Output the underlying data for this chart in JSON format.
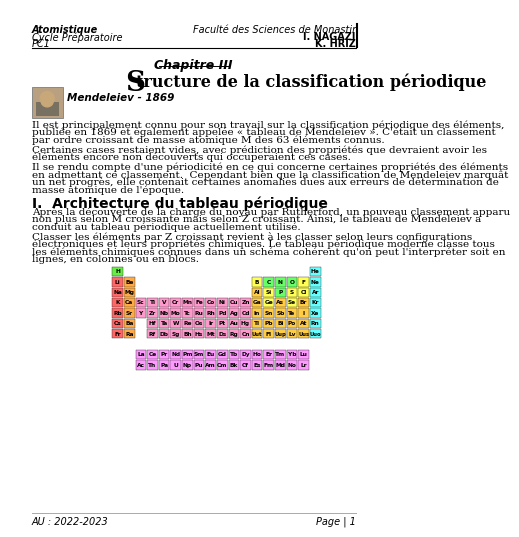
{
  "header_left": [
    "Atomistique",
    "Cycle Préparatoire",
    "PC1"
  ],
  "header_right": [
    "Faculté des Sciences de Monastir",
    "I. NAGAZI",
    "K. HRIZ"
  ],
  "chapter": "Chapitre III",
  "mendeleiev_label": "Mendeleiev - 1869",
  "para1_lines": [
    "Il est principalement connu pour son travail sur la classification périodique des éléments,",
    "publiée en 1869 et également appelée « tableau de Mendeleiev ». C'était un classement",
    "par ordre croissant de masse atomique M des 63 éléments connus."
  ],
  "para2_lines": [
    "Certaines cases restaient vides, avec prédiction des propriétés que devraient avoir les",
    "éléments encore non découverts qui occuperaient ces cases."
  ],
  "para3_lines": [
    "Il se rendu compte d'une périodicité en ce qui concerne certaines propriétés des éléments",
    "en admettant ce classement.  Cependant bien que la classification de Mendeleiev marquât",
    "un net progrès, elle contenait certaines anomalies dues aux erreurs de détermination de",
    "masse atomique de l'époque."
  ],
  "section1": "I.  Architecture du tableau périodique",
  "para4_lines": [
    "Après la découverte de la charge du noyau par Rutherford, un nouveau classement apparu",
    "non plus selon M croissante mais selon Z croissant. Ainsi, le tableau de Mendeleiev a",
    "conduit au tableau périodique actuellement utilisé."
  ],
  "para5_lines": [
    "Classer les éléments par Z croissant revient à les classer selon leurs configurations",
    "électroniques et leurs propriétés chimiques. Le tableau périodique moderne classe tous",
    "les éléments chimiques connues dans un schéma cohérent qu'on peut l'interpréter soit en",
    "lignes, en colonnes ou en blocs."
  ],
  "footer_left": "AU : 2022-2023",
  "footer_right": "Page | 1",
  "bg_color": "#ffffff",
  "text_color": "#000000",
  "title_S": "S",
  "title_rest": "tructure de la classification périodique",
  "lanthanides": [
    "La",
    "Ce",
    "Pr",
    "Nd",
    "Pm",
    "Sm",
    "Eu",
    "Gd",
    "Tb",
    "Dy",
    "Ho",
    "Er",
    "Tm",
    "Yb",
    "Lu"
  ],
  "actinides": [
    "Ac",
    "Th",
    "Pa",
    "U",
    "Np",
    "Pu",
    "Am",
    "Cm",
    "Bk",
    "Cf",
    "Es",
    "Fm",
    "Md",
    "No",
    "Lr"
  ],
  "d_row3": [
    "Sc",
    "Ti",
    "V",
    "Cr",
    "Mn",
    "Fe",
    "Co",
    "Ni",
    "Cu",
    "Zn"
  ],
  "d_row4": [
    "Y",
    "Zr",
    "Nb",
    "Mo",
    "Tc",
    "Ru",
    "Rh",
    "Pd",
    "Ag",
    "Cd"
  ],
  "d_row5": [
    "Hf",
    "Ta",
    "W",
    "Re",
    "Os",
    "Ir",
    "Pt",
    "Au",
    "Hg"
  ],
  "d_row6": [
    "Rf",
    "Db",
    "Sg",
    "Bh",
    "Hs",
    "Mt",
    "Ds",
    "Rg",
    "Cn"
  ],
  "color_s": "#ff6666",
  "color_s2": "#ffaa44",
  "color_d": "#ff99cc",
  "color_f": "#ff99ff",
  "color_p1": "#ffff55",
  "color_p2": "#66ff66",
  "color_p3": "#ffcc44",
  "color_noble": "#66ffff",
  "color_h": "#66ee44"
}
